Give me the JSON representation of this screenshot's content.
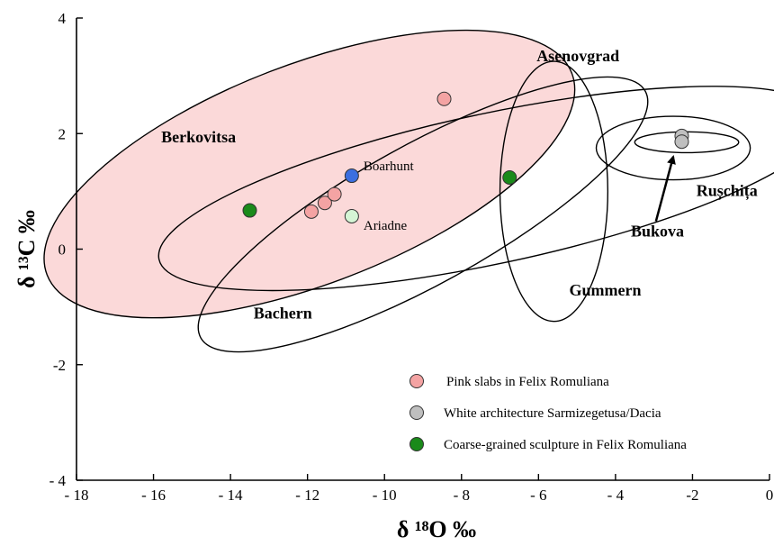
{
  "chart_data": {
    "type": "scatter",
    "xlabel": "δ ¹⁸O ‰",
    "ylabel": "δ ¹³C ‰",
    "xlim": [
      -18,
      0
    ],
    "ylim": [
      -4,
      4
    ],
    "x_ticks": [
      -18,
      -16,
      -14,
      -12,
      -10,
      -8,
      -6,
      -4,
      -2,
      0
    ],
    "x_tick_labels": [
      "- 18",
      "- 16",
      "- 14",
      "- 12",
      "- 10",
      "- 8",
      "- 6",
      "- 4",
      "-2",
      "0"
    ],
    "y_ticks": [
      4,
      2,
      0,
      -2,
      -4
    ],
    "y_tick_labels": [
      "4",
      "2",
      "0",
      "-2",
      "- 4"
    ],
    "grid": false,
    "legend_position": "bottom-right",
    "series": [
      {
        "name": "Pink slabs in Felix Romuliana",
        "color": "#f4a3a3",
        "points": [
          [
            -11.9,
            0.65
          ],
          [
            -11.55,
            0.8
          ],
          [
            -11.3,
            0.95
          ],
          [
            -8.45,
            2.6
          ]
        ]
      },
      {
        "name": "White architecture Sarmizegetusa/Dacia",
        "color": "#bfbfbf",
        "points": [
          [
            -2.28,
            1.96
          ],
          [
            -2.28,
            1.86
          ]
        ]
      },
      {
        "name": "Coarse-grained sculpture in Felix Romuliana",
        "color": "#1a8a1a",
        "points": [
          [
            -13.5,
            0.67
          ],
          [
            -6.75,
            1.24
          ]
        ]
      }
    ],
    "labeled_points": [
      {
        "label": "Boarhunt",
        "x": -10.85,
        "y": 1.27,
        "color": "#3b6fe0"
      },
      {
        "label": "Ariadne",
        "x": -10.85,
        "y": 0.57,
        "color": "#d5f5d5"
      }
    ],
    "regions": [
      {
        "name": "Berkovitsa",
        "shaded": true,
        "fill": "#fbd9d9",
        "center": [
          -11.95,
          1.3
        ],
        "half_axes": [
          7.3,
          1.9
        ],
        "angle_deg": 21
      },
      {
        "name": "Bachern",
        "shaded": false,
        "center": [
          -9.0,
          0.6
        ],
        "half_axes": [
          6.6,
          1.2
        ],
        "angle_deg": 29
      },
      {
        "name": "Asenovgrad",
        "shaded": false,
        "center": [
          -7.2,
          1.05
        ],
        "half_axes": [
          8.85,
          1.3
        ],
        "angle_deg": 12
      },
      {
        "name": "Gummern",
        "shaded": false,
        "center": [
          -5.6,
          1.0
        ],
        "half_axes": [
          1.4,
          2.25
        ],
        "angle_deg": 0
      },
      {
        "name": "Rușchița",
        "shaded": false,
        "center": [
          -2.5,
          1.75
        ],
        "half_axes": [
          2.0,
          0.55
        ],
        "angle_deg": 0
      },
      {
        "name": "Bukova",
        "shaded": false,
        "center": [
          -2.15,
          1.85
        ],
        "half_axes": [
          1.35,
          0.18
        ],
        "angle_deg": 0
      }
    ],
    "region_labels": [
      {
        "text": "Berkovitsa",
        "x": -15.8,
        "y": 1.85
      },
      {
        "text": "Bachern",
        "x": -13.4,
        "y": -1.2
      },
      {
        "text": "Asenovgrad",
        "x": -6.05,
        "y": 3.25
      },
      {
        "text": "Gummern",
        "x": -5.2,
        "y": -0.8
      },
      {
        "text": "Rușchița",
        "x": -1.9,
        "y": 0.92
      },
      {
        "text": "Bukova",
        "x": -3.6,
        "y": 0.22
      }
    ],
    "arrow": {
      "from": [
        -2.95,
        0.48
      ],
      "to": [
        -2.5,
        1.6
      ]
    }
  }
}
